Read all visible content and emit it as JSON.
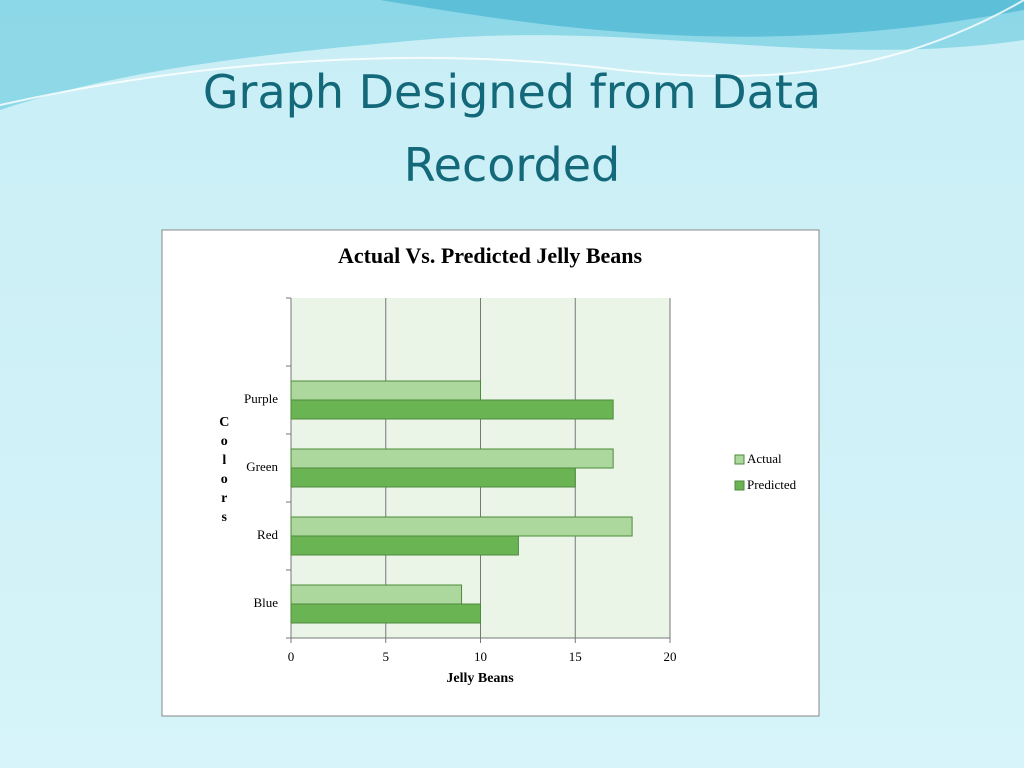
{
  "slide": {
    "title": "Graph Designed from Data Recorded"
  },
  "chart_data": {
    "type": "hbar",
    "title": "Actual Vs. Predicted Jelly Beans",
    "xlabel": "Jelly Beans",
    "ylabel": "Colors",
    "categories": [
      "Blue",
      "Red",
      "Green",
      "Purple",
      null
    ],
    "series": [
      {
        "name": "Actual",
        "color": "#acd89d",
        "values": [
          9,
          18,
          17,
          10,
          null
        ]
      },
      {
        "name": "Predicted",
        "color": "#6ab454",
        "values": [
          10,
          12,
          15,
          17,
          null
        ]
      }
    ],
    "xlim": [
      0,
      20
    ],
    "xticks": [
      0,
      5,
      10,
      15,
      20
    ],
    "grid": true,
    "legend": "right"
  }
}
